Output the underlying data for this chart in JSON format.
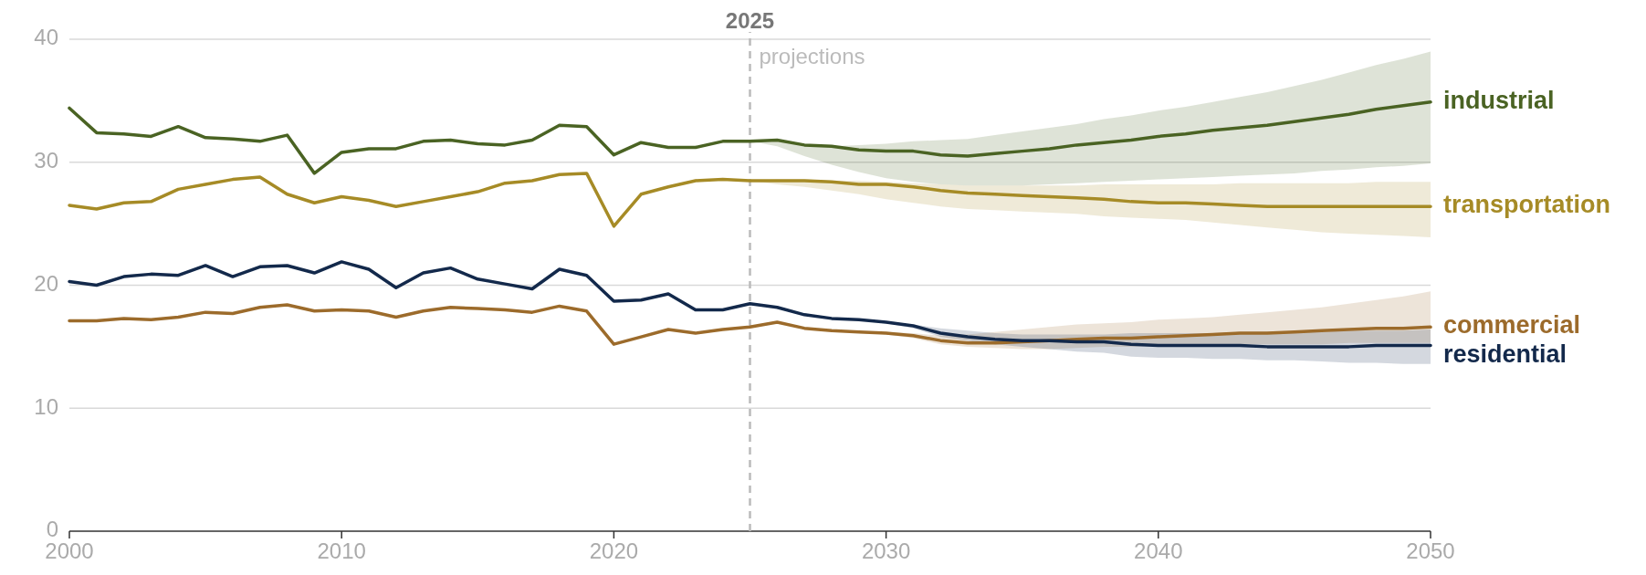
{
  "chart_data": {
    "type": "line",
    "x": [
      2000,
      2001,
      2002,
      2003,
      2004,
      2005,
      2006,
      2007,
      2008,
      2009,
      2010,
      2011,
      2012,
      2013,
      2014,
      2015,
      2016,
      2017,
      2018,
      2019,
      2020,
      2021,
      2022,
      2023,
      2024,
      2025,
      2026,
      2027,
      2028,
      2029,
      2030,
      2031,
      2032,
      2033,
      2034,
      2035,
      2036,
      2037,
      2038,
      2039,
      2040,
      2041,
      2042,
      2043,
      2044,
      2045,
      2046,
      2047,
      2048,
      2049,
      2050
    ],
    "xlim": [
      2000,
      2050
    ],
    "xticks": [
      2000,
      2010,
      2020,
      2030,
      2040,
      2050
    ],
    "ylim": [
      0,
      40
    ],
    "yticks": [
      0,
      10,
      20,
      30,
      40
    ],
    "grid": "y",
    "line_style": "solid",
    "marker": "none",
    "ref_lines": [
      {
        "axis": "x",
        "value": 2025,
        "label": "2025",
        "color": "#bbbbbb",
        "line_style": "dashed"
      }
    ],
    "annotations": [
      {
        "text": "projections",
        "x": 2025,
        "y": 38.5
      }
    ],
    "series": [
      {
        "name": "industrial",
        "color": "#4a6323",
        "values": [
          34.4,
          32.4,
          32.3,
          32.1,
          32.9,
          32.0,
          31.9,
          31.7,
          32.2,
          29.1,
          30.8,
          31.1,
          31.1,
          31.7,
          31.8,
          31.5,
          31.4,
          31.8,
          33.0,
          32.9,
          30.6,
          31.6,
          31.2,
          31.2,
          31.7,
          31.7,
          31.8,
          31.4,
          31.3,
          31.0,
          30.9,
          30.9,
          30.6,
          30.5,
          30.7,
          30.9,
          31.1,
          31.4,
          31.6,
          31.8,
          32.1,
          32.3,
          32.6,
          32.8,
          33.0,
          33.3,
          33.6,
          33.9,
          34.3,
          34.6,
          34.9
        ],
        "lower": [
          null,
          null,
          null,
          null,
          null,
          null,
          null,
          null,
          null,
          null,
          null,
          null,
          null,
          null,
          null,
          null,
          null,
          null,
          null,
          null,
          null,
          null,
          null,
          null,
          null,
          31.7,
          31.3,
          30.5,
          29.8,
          29.2,
          28.7,
          28.4,
          28.2,
          28.1,
          28.1,
          28.1,
          28.2,
          28.3,
          28.4,
          28.5,
          28.6,
          28.7,
          28.8,
          28.9,
          29.0,
          29.1,
          29.3,
          29.4,
          29.6,
          29.7,
          29.9
        ],
        "upper": [
          null,
          null,
          null,
          null,
          null,
          null,
          null,
          null,
          null,
          null,
          null,
          null,
          null,
          null,
          null,
          null,
          null,
          null,
          null,
          null,
          null,
          null,
          null,
          null,
          null,
          31.7,
          31.8,
          31.4,
          31.3,
          31.4,
          31.5,
          31.7,
          31.8,
          31.9,
          32.2,
          32.5,
          32.8,
          33.1,
          33.5,
          33.8,
          34.2,
          34.5,
          34.9,
          35.3,
          35.7,
          36.2,
          36.7,
          37.3,
          37.9,
          38.4,
          39.0
        ]
      },
      {
        "name": "transportation",
        "color": "#a68b26",
        "values": [
          26.5,
          26.2,
          26.7,
          26.8,
          27.8,
          28.2,
          28.6,
          28.8,
          27.4,
          26.7,
          27.2,
          26.9,
          26.4,
          26.8,
          27.2,
          27.6,
          28.3,
          28.5,
          29.0,
          29.1,
          24.8,
          27.4,
          28.0,
          28.5,
          28.6,
          28.5,
          28.5,
          28.5,
          28.4,
          28.2,
          28.2,
          28.0,
          27.7,
          27.5,
          27.4,
          27.3,
          27.2,
          27.1,
          27.0,
          26.8,
          26.7,
          26.7,
          26.6,
          26.5,
          26.4,
          26.4,
          26.4,
          26.4,
          26.4,
          26.4,
          26.4
        ],
        "lower": [
          null,
          null,
          null,
          null,
          null,
          null,
          null,
          null,
          null,
          null,
          null,
          null,
          null,
          null,
          null,
          null,
          null,
          null,
          null,
          null,
          null,
          null,
          null,
          null,
          null,
          28.5,
          28.2,
          28.0,
          27.7,
          27.4,
          27.0,
          26.7,
          26.4,
          26.2,
          26.1,
          26.0,
          25.9,
          25.8,
          25.6,
          25.5,
          25.4,
          25.3,
          25.1,
          24.9,
          24.7,
          24.5,
          24.3,
          24.2,
          24.1,
          24.0,
          23.9
        ],
        "upper": [
          null,
          null,
          null,
          null,
          null,
          null,
          null,
          null,
          null,
          null,
          null,
          null,
          null,
          null,
          null,
          null,
          null,
          null,
          null,
          null,
          null,
          null,
          null,
          null,
          null,
          28.5,
          28.6,
          28.6,
          28.5,
          28.5,
          28.4,
          28.3,
          28.2,
          28.1,
          28.1,
          28.1,
          28.1,
          28.1,
          28.2,
          28.2,
          28.2,
          28.2,
          28.2,
          28.3,
          28.3,
          28.3,
          28.3,
          28.3,
          28.4,
          28.4,
          28.4
        ]
      },
      {
        "name": "commercial",
        "color": "#9c6b2b",
        "values": [
          17.1,
          17.1,
          17.3,
          17.2,
          17.4,
          17.8,
          17.7,
          18.2,
          18.4,
          17.9,
          18.0,
          17.9,
          17.4,
          17.9,
          18.2,
          18.1,
          18.0,
          17.8,
          18.3,
          17.9,
          15.2,
          15.8,
          16.4,
          16.1,
          16.4,
          16.6,
          17.0,
          16.5,
          16.3,
          16.2,
          16.1,
          15.9,
          15.5,
          15.3,
          15.3,
          15.4,
          15.5,
          15.6,
          15.7,
          15.7,
          15.8,
          15.9,
          16.0,
          16.1,
          16.1,
          16.2,
          16.3,
          16.4,
          16.5,
          16.5,
          16.6
        ],
        "lower": [
          null,
          null,
          null,
          null,
          null,
          null,
          null,
          null,
          null,
          null,
          null,
          null,
          null,
          null,
          null,
          null,
          null,
          null,
          null,
          null,
          null,
          null,
          null,
          null,
          null,
          16.6,
          17.0,
          16.5,
          16.3,
          16.2,
          16.0,
          15.7,
          15.2,
          15.0,
          14.9,
          14.8,
          14.8,
          14.9,
          15.0,
          15.0,
          15.1,
          15.1,
          15.1,
          15.2,
          15.2,
          15.2,
          15.2,
          15.3,
          15.3,
          15.3,
          15.3
        ],
        "upper": [
          null,
          null,
          null,
          null,
          null,
          null,
          null,
          null,
          null,
          null,
          null,
          null,
          null,
          null,
          null,
          null,
          null,
          null,
          null,
          null,
          null,
          null,
          null,
          null,
          null,
          16.6,
          17.0,
          16.5,
          16.3,
          16.2,
          16.2,
          16.1,
          15.9,
          16.0,
          16.2,
          16.4,
          16.6,
          16.8,
          16.9,
          17.0,
          17.2,
          17.3,
          17.4,
          17.6,
          17.8,
          18.0,
          18.2,
          18.5,
          18.8,
          19.1,
          19.5
        ]
      },
      {
        "name": "residential",
        "color": "#13294b",
        "values": [
          20.3,
          20.0,
          20.7,
          20.9,
          20.8,
          21.6,
          20.7,
          21.5,
          21.6,
          21.0,
          21.9,
          21.3,
          19.8,
          21.0,
          21.4,
          20.5,
          20.1,
          19.7,
          21.3,
          20.8,
          18.7,
          18.8,
          19.3,
          18.0,
          18.0,
          18.5,
          18.2,
          17.6,
          17.3,
          17.2,
          17.0,
          16.7,
          16.1,
          15.8,
          15.6,
          15.5,
          15.5,
          15.4,
          15.4,
          15.2,
          15.1,
          15.1,
          15.1,
          15.1,
          15.0,
          15.0,
          15.0,
          15.0,
          15.1,
          15.1,
          15.1
        ],
        "lower": [
          null,
          null,
          null,
          null,
          null,
          null,
          null,
          null,
          null,
          null,
          null,
          null,
          null,
          null,
          null,
          null,
          null,
          null,
          null,
          null,
          null,
          null,
          null,
          null,
          null,
          18.5,
          18.2,
          17.6,
          17.3,
          17.2,
          16.9,
          16.5,
          15.8,
          15.5,
          15.2,
          15.0,
          14.8,
          14.6,
          14.5,
          14.2,
          14.1,
          14.1,
          14.0,
          14.0,
          13.9,
          13.9,
          13.8,
          13.7,
          13.7,
          13.6,
          13.6
        ],
        "upper": [
          null,
          null,
          null,
          null,
          null,
          null,
          null,
          null,
          null,
          null,
          null,
          null,
          null,
          null,
          null,
          null,
          null,
          null,
          null,
          null,
          null,
          null,
          null,
          null,
          null,
          18.5,
          18.2,
          17.6,
          17.3,
          17.2,
          17.0,
          16.8,
          16.5,
          16.3,
          16.1,
          16.0,
          16.0,
          16.0,
          16.0,
          16.1,
          16.1,
          16.1,
          16.1,
          16.2,
          16.2,
          16.2,
          16.2,
          16.3,
          16.3,
          16.3,
          16.4
        ]
      }
    ]
  }
}
